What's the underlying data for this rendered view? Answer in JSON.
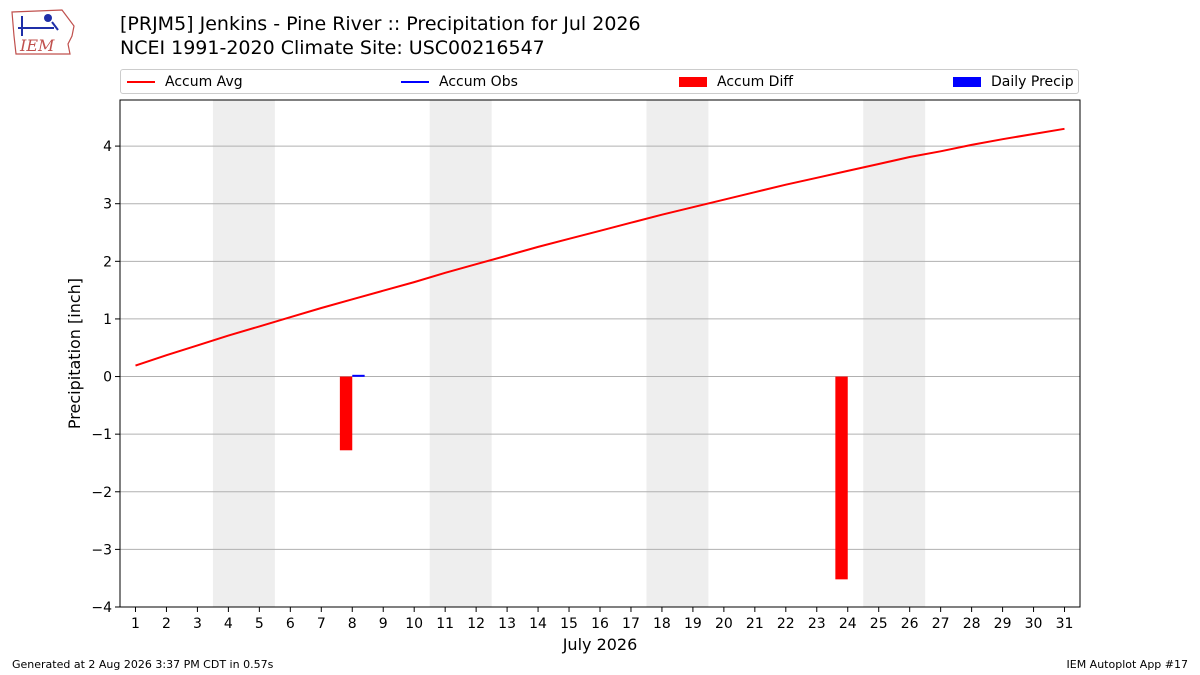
{
  "header": {
    "title_line1": "[PRJM5] Jenkins - Pine River :: Precipitation for Jul 2026",
    "title_line2": "NCEI 1991-2020 Climate Site: USC00216547"
  },
  "logo": {
    "text": "IEM"
  },
  "legend": {
    "placement": "top",
    "items": [
      {
        "label": "Accum Avg",
        "color": "#ff0000",
        "kind": "line"
      },
      {
        "label": "Accum Obs",
        "color": "#0000ff",
        "kind": "line"
      },
      {
        "label": "Accum Diff",
        "color": "#ff0000",
        "kind": "bar"
      },
      {
        "label": "Daily Precip",
        "color": "#0000ff",
        "kind": "bar"
      }
    ]
  },
  "footer": {
    "generated": "Generated at 2 Aug 2026 3:37 PM CDT in 0.57s",
    "app": "IEM Autoplot App #17"
  },
  "chart_data": {
    "type": "line",
    "xlabel": "July 2026",
    "ylabel": "Precipitation [inch]",
    "x": [
      1,
      2,
      3,
      4,
      5,
      6,
      7,
      8,
      9,
      10,
      11,
      12,
      13,
      14,
      15,
      16,
      17,
      18,
      19,
      20,
      21,
      22,
      23,
      24,
      25,
      26,
      27,
      28,
      29,
      30,
      31
    ],
    "x_ticks": [
      "1",
      "2",
      "3",
      "4",
      "5",
      "6",
      "7",
      "8",
      "9",
      "10",
      "11",
      "12",
      "13",
      "14",
      "15",
      "16",
      "17",
      "18",
      "19",
      "20",
      "21",
      "22",
      "23",
      "24",
      "25",
      "26",
      "27",
      "28",
      "29",
      "30",
      "31"
    ],
    "y_ticks": [
      -4,
      -3,
      -2,
      -1,
      0,
      1,
      2,
      3,
      4
    ],
    "y_tick_labels": [
      "−4",
      "−3",
      "−2",
      "−1",
      "0",
      "1",
      "2",
      "3",
      "4"
    ],
    "ylim": [
      -4.0,
      4.8
    ],
    "xlim": [
      0.5,
      31.5
    ],
    "grid": "horizontal",
    "weekend_shading": [
      [
        3.5,
        5.5
      ],
      [
        10.5,
        12.5
      ],
      [
        17.5,
        19.5
      ],
      [
        24.5,
        26.5
      ]
    ],
    "series": [
      {
        "name": "Accum Avg",
        "color": "#ff0000",
        "values": [
          0.19,
          0.37,
          0.54,
          0.71,
          0.87,
          1.03,
          1.19,
          1.34,
          1.49,
          1.64,
          1.8,
          1.95,
          2.1,
          2.25,
          2.39,
          2.53,
          2.67,
          2.81,
          2.94,
          3.07,
          3.2,
          3.33,
          3.45,
          3.57,
          3.69,
          3.81,
          3.91,
          4.02,
          4.12,
          4.21,
          4.3
        ]
      },
      {
        "name": "Accum Diff",
        "color": "#ff0000",
        "x": [
          8,
          24
        ],
        "values": [
          -1.28,
          -3.52
        ]
      },
      {
        "name": "Daily Precip",
        "color": "#0000ff",
        "x": [
          8
        ],
        "values": [
          0.03
        ]
      }
    ]
  }
}
